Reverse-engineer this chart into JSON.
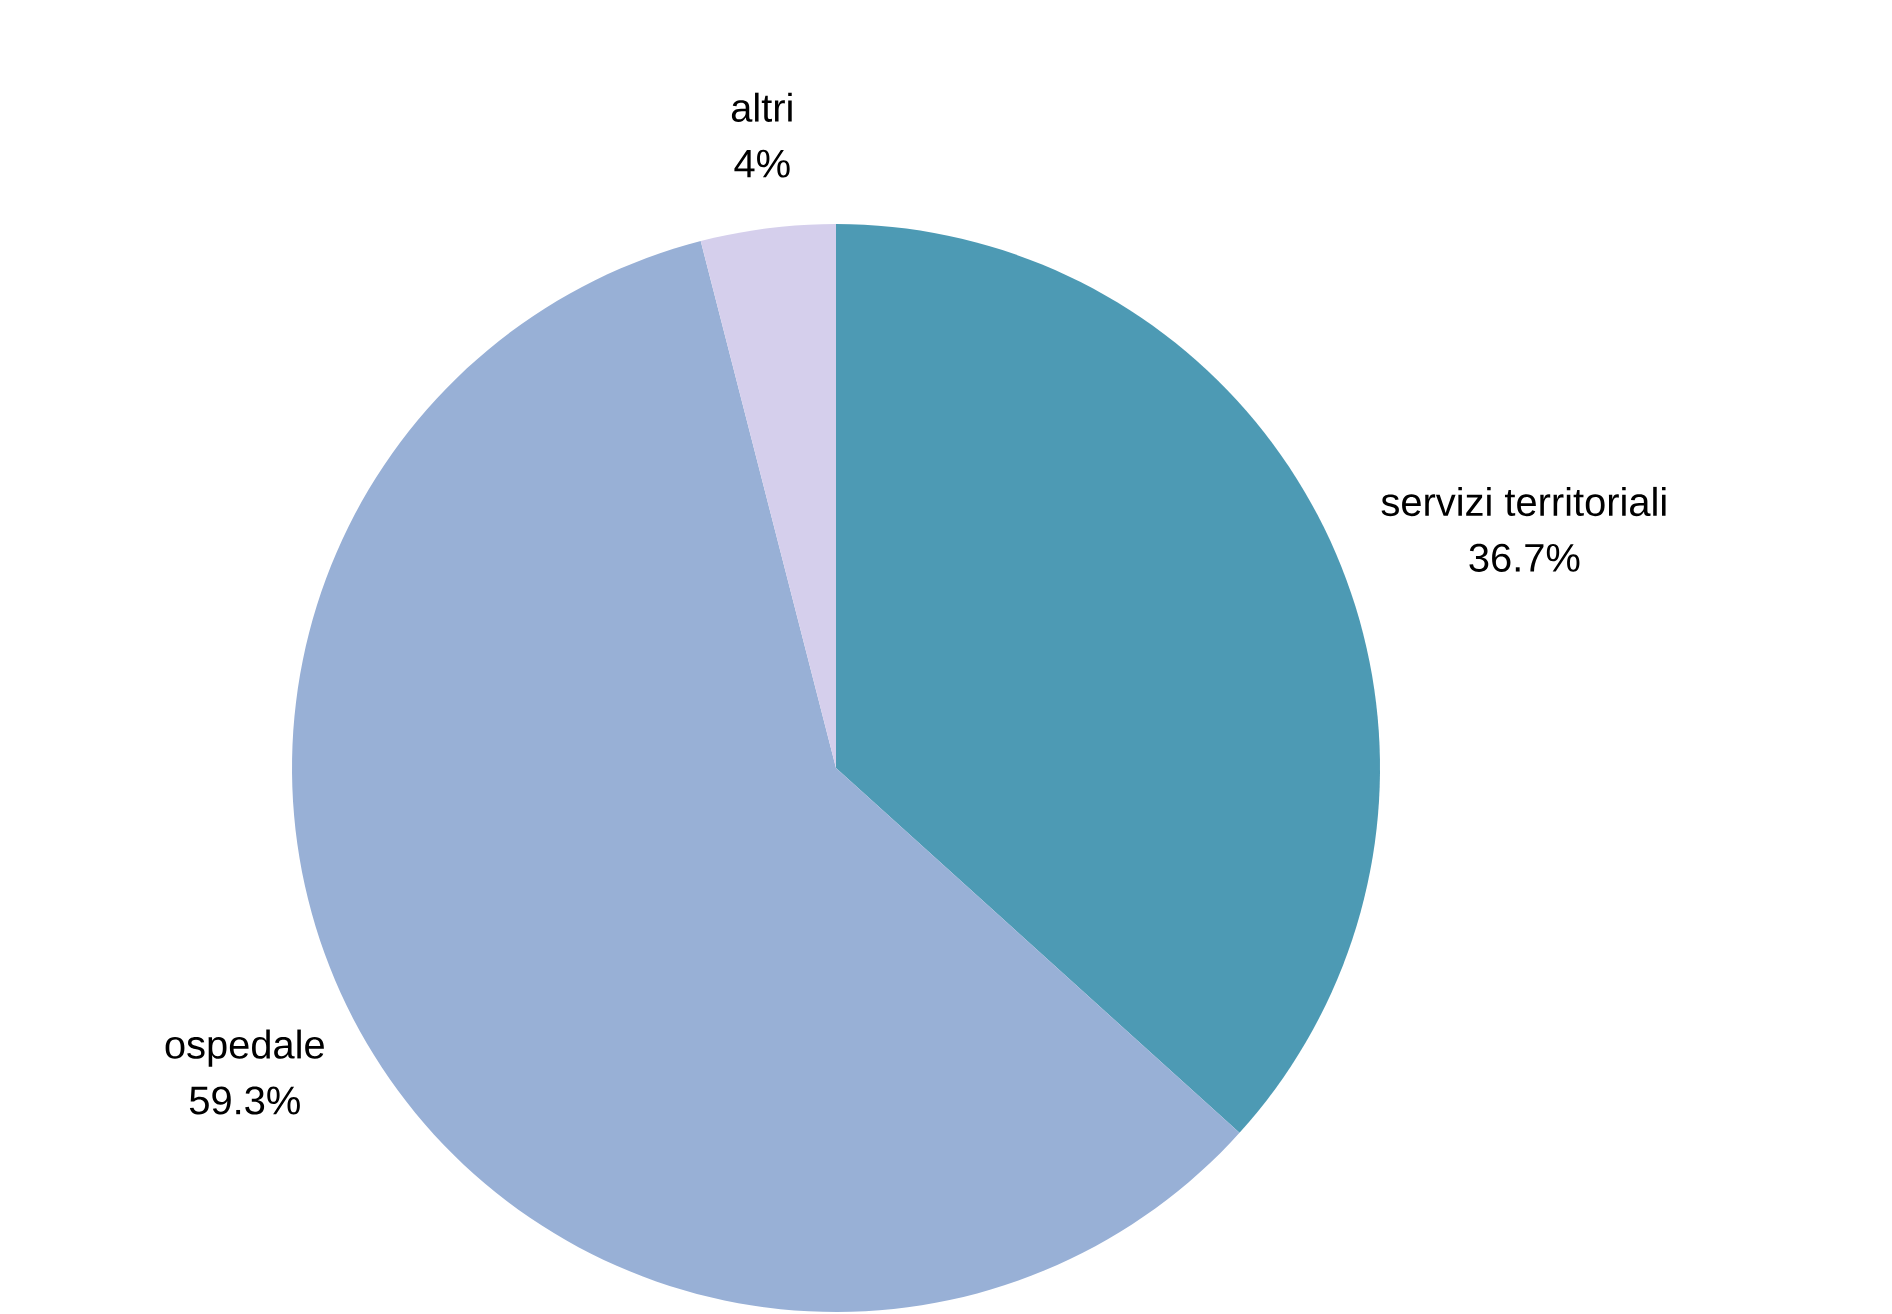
{
  "chart_data": {
    "type": "pie",
    "categories": [
      "servizi territoriali",
      "ospedale",
      "altri"
    ],
    "values": [
      36.7,
      59.3,
      4
    ],
    "value_labels": [
      "36.7%",
      "59.3%",
      "4%"
    ],
    "colors": [
      "#4d9ab4",
      "#98b0d6",
      "#d5cfec"
    ]
  }
}
